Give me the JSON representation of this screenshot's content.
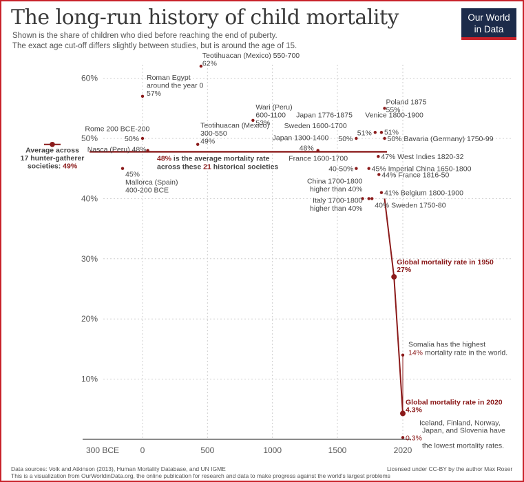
{
  "header": {
    "title": "The long-run history of child mortality",
    "subtitle_line1": "Shown is the share of children who died before reaching the end of puberty.",
    "subtitle_line2": "The exact age cut-off differs slightly between studies, but is around the age of 15.",
    "logo_line1": "Our World",
    "logo_line2": "in Data"
  },
  "footer": {
    "sources": "Data sources: Volk and Atkinson (2013), Human Mortality Database, and UN IGME",
    "license": "Licensed under CC-BY by the author Max Roser",
    "note": "This is a visualization from OurWorldinData.org, the online publication for research and data to make progress against the world's largest problems"
  },
  "colors": {
    "accent": "#c8222a",
    "point": "#8b1a1a",
    "line": "#8b1a1a",
    "navy": "#1c2b4a"
  },
  "chart_data": {
    "type": "scatter",
    "title": "The long-run history of child mortality",
    "ylim": [
      0,
      62
    ],
    "xlim": [
      -300,
      2022
    ],
    "y_ticks": [
      "10%",
      "20%",
      "30%",
      "40%",
      "50%",
      "60%"
    ],
    "y_tick_values": [
      10,
      20,
      30,
      40,
      50,
      60
    ],
    "x_ticks": [
      "300 BCE",
      "0",
      "500",
      "1000",
      "1500",
      "2020"
    ],
    "x_tick_values": [
      -300,
      0,
      500,
      1000,
      1500,
      2020
    ],
    "grid": true,
    "hunter_gatherer": {
      "label_lines": [
        "Average across",
        "17 hunter-gatherer"
      ],
      "label_last": "societies: ",
      "value_label": "49%",
      "value": 49
    },
    "average": {
      "value": 48,
      "label_pct": "48%",
      "label_rest": " is the average mortality rate",
      "label_line2_a": "across these ",
      "label_line2_b": "21",
      "label_line2_c": " historical societies"
    },
    "points": [
      {
        "x": 450,
        "y": 62,
        "label_lines": [
          "Teotihuacan (Mexico) 550-700",
          "62%"
        ],
        "anchor": "start",
        "lx": 2,
        "ly": -16
      },
      {
        "x": 0,
        "y": 57,
        "label_lines": [
          "Roman Egypt",
          "around the year 0",
          "57%"
        ],
        "anchor": "start",
        "lx": 6,
        "ly": -28
      },
      {
        "x": 0,
        "y": 50,
        "label_lines": [
          "50%"
        ],
        "anchor": "end",
        "lx": -5,
        "ly": 0
      },
      {
        "x": 425,
        "y": 49,
        "label_lines": [
          "Teotihuacan (Mexico)",
          "300-550",
          "49%"
        ],
        "anchor": "start",
        "lx": 4,
        "ly": -28
      },
      {
        "x": 850,
        "y": 53,
        "label_lines": [
          "Wari (Peru)",
          "600-1100",
          "53%"
        ],
        "anchor": "start",
        "lx": 4,
        "ly": -20
      },
      {
        "x": 1350,
        "y": 48,
        "label_lines": [
          "48%"
        ],
        "anchor": "end",
        "lx": -6,
        "ly": -4
      },
      {
        "x": 1650,
        "y": 50,
        "label_lines": [
          "50%"
        ],
        "anchor": "end",
        "lx": -5,
        "ly": 0
      },
      {
        "x": 1800,
        "y": 51,
        "label_lines": [
          "51%"
        ],
        "anchor": "end",
        "lx": -5,
        "ly": 0
      },
      {
        "x": 1850,
        "y": 51,
        "label_lines": [
          "51%"
        ],
        "anchor": "start",
        "lx": 4,
        "ly": -1
      },
      {
        "x": 1875,
        "y": 55,
        "label_lines": [
          "Poland 1875",
          "55%"
        ],
        "anchor": "start",
        "lx": 2,
        "ly": -10
      },
      {
        "x": 1875,
        "y": 50,
        "label_lines": [
          "50% Bavaria (Germany) 1750-99"
        ],
        "anchor": "start",
        "lx": 4,
        "ly": 0
      },
      {
        "x": 40,
        "y": 48,
        "label_lines": [
          "Nasca (Peru) 48%"
        ],
        "anchor": "end",
        "lx": -2,
        "ly": -2
      },
      {
        "x": -150,
        "y": 45,
        "label_lines": [
          "45%",
          "Mallorca (Spain)",
          "400-200 BCE"
        ],
        "anchor": "start",
        "lx": 4,
        "ly": 8
      },
      {
        "x": 1650,
        "y": 45,
        "label_lines": [
          "40-50%"
        ],
        "anchor": "end",
        "lx": -4,
        "ly": 0
      },
      {
        "x": 1825,
        "y": 47,
        "label_lines": [
          "47% West Indies 1820-32"
        ],
        "anchor": "start",
        "lx": 4,
        "ly": 0
      },
      {
        "x": 1750,
        "y": 45,
        "label_lines": [
          "45% Imperial China 1650-1800"
        ],
        "anchor": "start",
        "lx": 4,
        "ly": 0
      },
      {
        "x": 1830,
        "y": 44,
        "label_lines": [
          "44% France 1816-50"
        ],
        "anchor": "start",
        "lx": 4,
        "ly": 0
      },
      {
        "x": 1850,
        "y": 41,
        "label_lines": [
          "41% Belgium 1800-1900"
        ],
        "anchor": "start",
        "lx": 4,
        "ly": 0
      },
      {
        "x": 1750,
        "y": 40,
        "label_lines": [],
        "anchor": "start",
        "lx": 0,
        "ly": 0
      },
      {
        "x": 1700,
        "y": 40,
        "label_lines": [],
        "anchor": "start",
        "lx": 0,
        "ly": 0
      },
      {
        "x": 1775,
        "y": 40,
        "label_lines": [
          "40% Sweden 1750-80"
        ],
        "anchor": "start",
        "lx": 4,
        "ly": 9
      }
    ],
    "free_labels": [
      {
        "x": 55,
        "y": 51.2,
        "lines": [
          "Rome 200 BCE-200"
        ],
        "anchor": "end"
      },
      {
        "x": 1000,
        "y": 49.7,
        "lines": [
          "Japan 1300-1400"
        ],
        "anchor": "start"
      },
      {
        "x": 1620,
        "y": 53.5,
        "lines": [
          "Japan 1776-1875"
        ],
        "anchor": "end"
      },
      {
        "x": 1720,
        "y": 53.5,
        "lines": [
          "Venice 1800-1900"
        ],
        "anchor": "start"
      },
      {
        "x": 1575,
        "y": 51.7,
        "lines": [
          "Sweden 1600-1700"
        ],
        "anchor": "end"
      },
      {
        "x": 1125,
        "y": 46.3,
        "lines": [
          "France 1600-1700"
        ],
        "anchor": "start"
      },
      {
        "x": 1700,
        "y": 42.5,
        "lines": [
          "China 1700-1800",
          "higher than 40%"
        ],
        "anchor": "end"
      },
      {
        "x": 1700,
        "y": 39.3,
        "lines": [
          "Italy 1700-1800",
          "higher than 40%"
        ],
        "anchor": "end"
      }
    ],
    "series": [
      {
        "x": [
          1950,
          2020
        ],
        "y": [
          27,
          4.3
        ]
      }
    ],
    "callouts": [
      {
        "x": 1950,
        "y": 27,
        "value_label": "27%",
        "text_lines": [
          "Global mortality rate in 1950"
        ],
        "lx": 4,
        "ly": -18
      },
      {
        "x": 2020,
        "y": 14,
        "value_label": "14%",
        "text_lines": [
          "Somalia has the highest",
          "mortality rate in the world."
        ],
        "lx": 4,
        "ly": -12
      },
      {
        "x": 2020,
        "y": 4.3,
        "value_label": "4.3%",
        "text_lines": [
          "Global mortality rate in 2020"
        ],
        "lx": 4,
        "ly": -13
      },
      {
        "x": 2020,
        "y": 0.3,
        "value_label": "0.3%",
        "text_lines": [
          "Iceland, Finland, Norway,",
          "Japan, and Slovenia have",
          "the lowest mortality rates."
        ],
        "lx": 4,
        "ly": -18
      }
    ]
  }
}
